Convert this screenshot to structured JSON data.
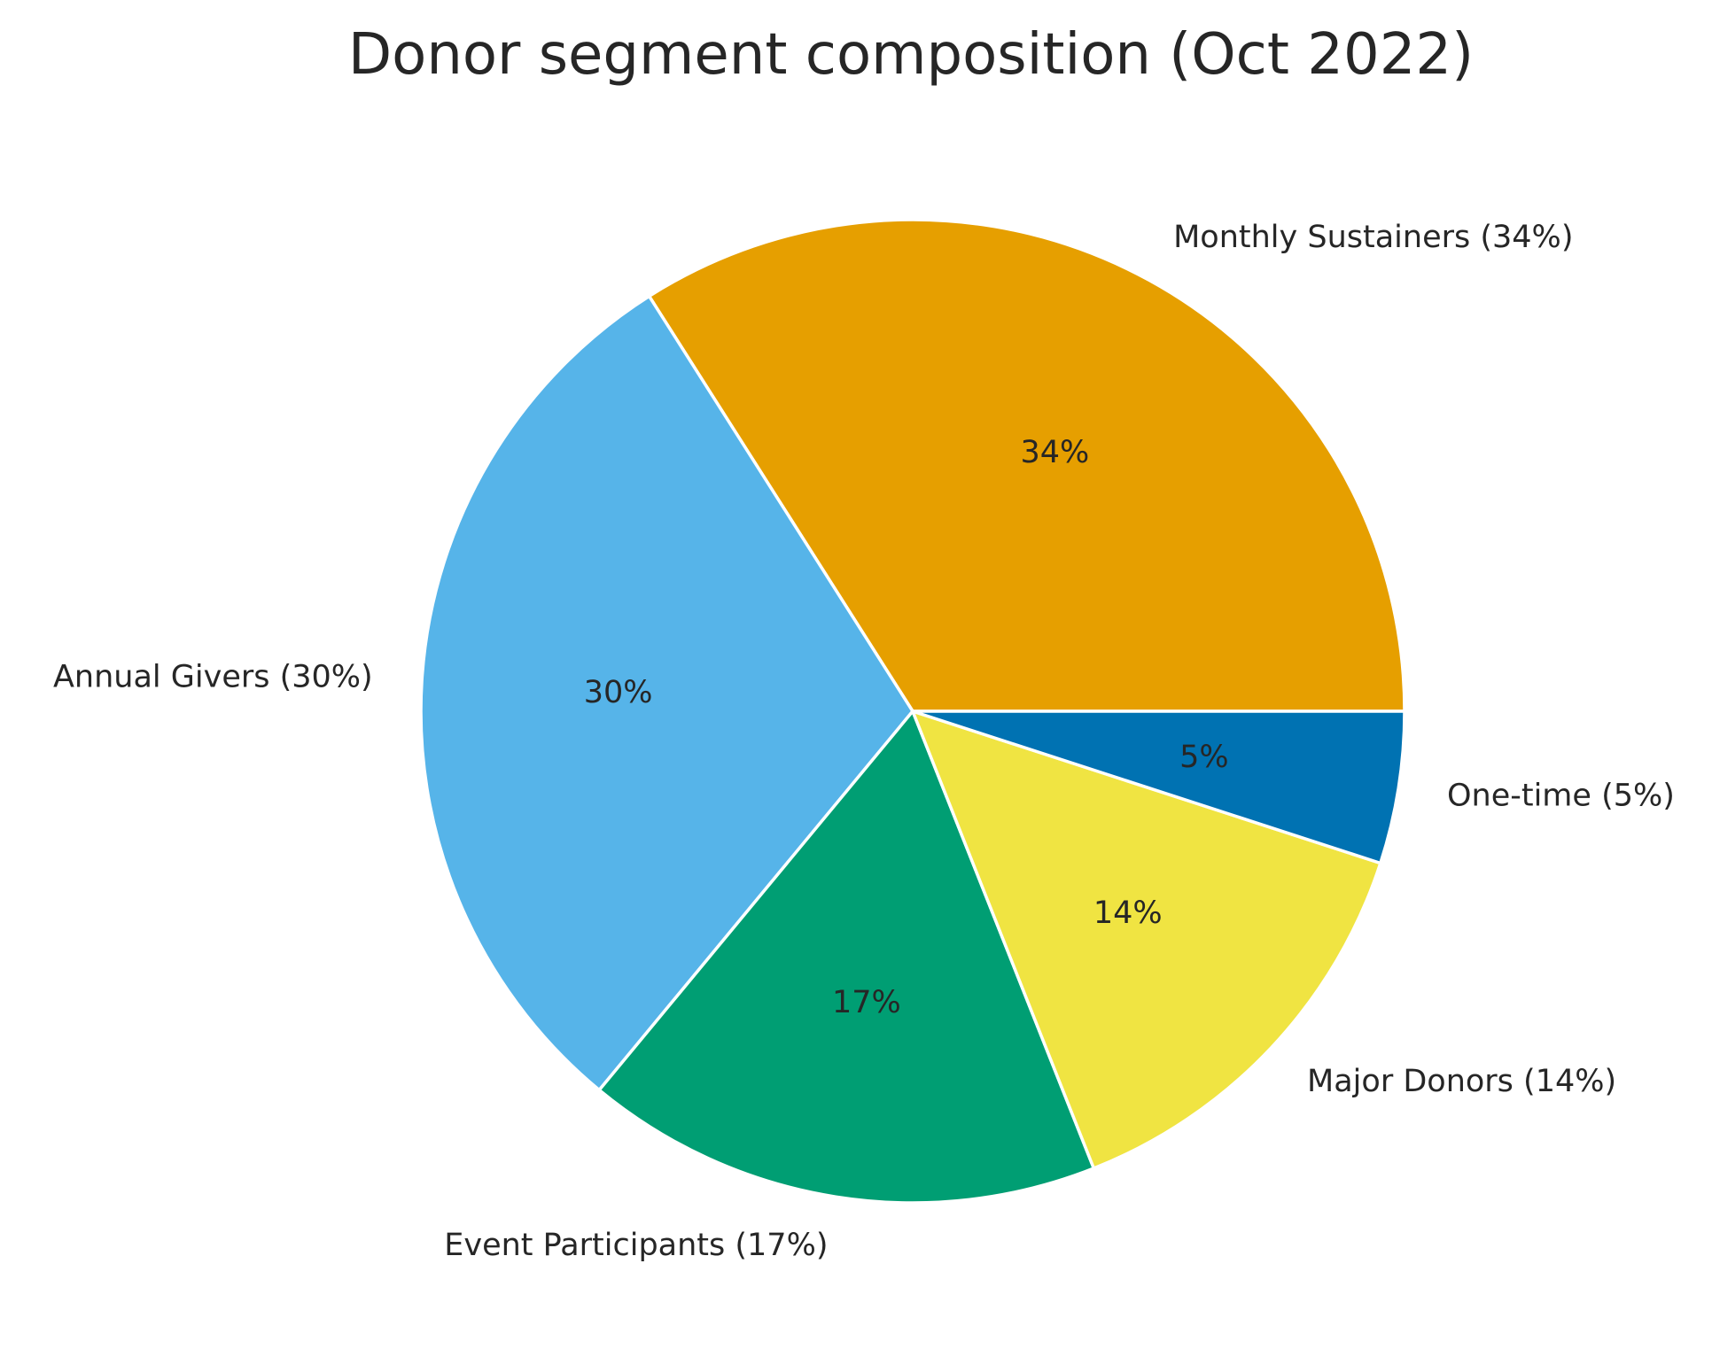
{
  "chart_data": {
    "type": "pie",
    "title": "Donor segment composition (Oct 2022)",
    "start_angle_deg": 0,
    "direction": "counterclockwise",
    "slices": [
      {
        "label": "Monthly Sustainers (34%)",
        "pct_label": "34%",
        "value": 34,
        "color": "#E69F00"
      },
      {
        "label": "Annual Givers (30%)",
        "pct_label": "30%",
        "value": 30,
        "color": "#56B4E9"
      },
      {
        "label": "Event Participants (17%)",
        "pct_label": "17%",
        "value": 17,
        "color": "#009E73"
      },
      {
        "label": "Major Donors (14%)",
        "pct_label": "14%",
        "value": 14,
        "color": "#F0E442"
      },
      {
        "label": "One-time (5%)",
        "pct_label": "5%",
        "value": 5,
        "color": "#0072B2"
      }
    ]
  }
}
